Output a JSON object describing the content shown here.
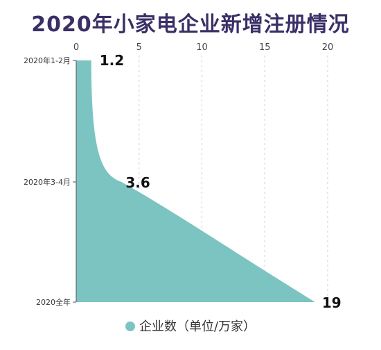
{
  "chart_data": {
    "type": "area",
    "title": "2020年小家电企业新增注册情况",
    "categories": [
      "2020年1-2月",
      "2020年3-4月",
      "2020全年"
    ],
    "series": [
      {
        "name": "企业数（单位/万家）",
        "values": [
          1.2,
          3.6,
          19
        ]
      }
    ],
    "value_labels": [
      "1.2",
      "3.6",
      "19"
    ],
    "xlim": [
      0,
      20
    ],
    "x_ticks": [
      0,
      5,
      10,
      15,
      20
    ],
    "x_tick_labels": [
      "0",
      "5",
      "10",
      "15",
      "20"
    ],
    "grid": true,
    "legend_position": "bottom-center",
    "colors": {
      "fill": "#7cc4c2",
      "title": "#3a2f66",
      "grid": "#cccccc",
      "axis": "#555555"
    }
  }
}
